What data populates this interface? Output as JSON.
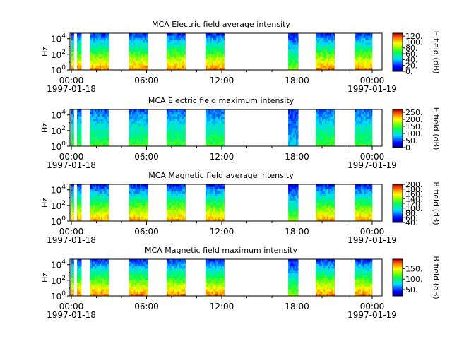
{
  "chart_data": [
    {
      "type": "heatmap",
      "title": "MCA  Electric field average intensity",
      "ylabel": "Hz",
      "y_ticks": [
        {
          "base": "10",
          "exp": "0"
        },
        {
          "base": "10",
          "exp": "2"
        },
        {
          "base": "10",
          "exp": "4"
        }
      ],
      "ylim_log10": [
        0,
        4.7
      ],
      "x_ticks": [
        "00:00",
        "06:00",
        "12:00",
        "18:00",
        "00:00"
      ],
      "x_dates": [
        "1997-01-18",
        "1997-01-19"
      ],
      "colorbar": {
        "label": "E field (dB)",
        "ticks": [
          "0.",
          "20.",
          "40.",
          "60.",
          "80.",
          "100.",
          "120."
        ],
        "range": [
          0,
          130
        ]
      },
      "base_level": 0.42,
      "data_intervals_hours": [
        [
          0.0,
          0.2
        ],
        [
          0.45,
          0.8
        ],
        [
          1.5,
          3.0
        ],
        [
          4.6,
          6.1
        ],
        [
          7.6,
          9.1
        ],
        [
          10.7,
          12.2
        ],
        [
          17.3,
          18.1
        ],
        [
          19.5,
          21.0
        ],
        [
          22.6,
          24.0
        ]
      ]
    },
    {
      "type": "heatmap",
      "title": "MCA  Electric field maximum intensity",
      "ylabel": "Hz",
      "y_ticks": [
        {
          "base": "10",
          "exp": "0"
        },
        {
          "base": "10",
          "exp": "2"
        },
        {
          "base": "10",
          "exp": "4"
        }
      ],
      "ylim_log10": [
        0,
        4.7
      ],
      "x_ticks": [
        "00:00",
        "06:00",
        "12:00",
        "18:00",
        "00:00"
      ],
      "x_dates": [
        "1997-01-18",
        "1997-01-19"
      ],
      "colorbar": {
        "label": "E field (dB)",
        "ticks": [
          "0.",
          "50.",
          "100.",
          "150.",
          "200.",
          "250."
        ],
        "range": [
          0,
          270
        ]
      },
      "base_level": 0.33,
      "data_intervals_hours": [
        [
          0.0,
          0.2
        ],
        [
          0.45,
          0.8
        ],
        [
          1.5,
          3.0
        ],
        [
          4.6,
          6.1
        ],
        [
          7.6,
          9.1
        ],
        [
          10.7,
          12.2
        ],
        [
          17.3,
          18.1
        ],
        [
          19.5,
          21.0
        ],
        [
          22.6,
          24.0
        ]
      ]
    },
    {
      "type": "heatmap",
      "title": "MCA  Magnetic field average intensity",
      "ylabel": "Hz",
      "y_ticks": [
        {
          "base": "10",
          "exp": "0"
        },
        {
          "base": "10",
          "exp": "2"
        },
        {
          "base": "10",
          "exp": "4"
        }
      ],
      "ylim_log10": [
        0,
        4.7
      ],
      "x_ticks": [
        "00:00",
        "06:00",
        "12:00",
        "18:00",
        "00:00"
      ],
      "x_dates": [
        "1997-01-18",
        "1997-01-19"
      ],
      "colorbar": {
        "label": "B field (dB)",
        "ticks": [
          "40.",
          "60.",
          "80.",
          "100.",
          "120.",
          "140.",
          "160.",
          "180.",
          "200."
        ],
        "range": [
          40,
          200
        ]
      },
      "base_level": 0.4,
      "data_intervals_hours": [
        [
          0.0,
          0.2
        ],
        [
          0.45,
          0.8
        ],
        [
          1.5,
          3.0
        ],
        [
          4.6,
          6.1
        ],
        [
          7.6,
          9.1
        ],
        [
          10.7,
          12.2
        ],
        [
          17.3,
          18.1
        ],
        [
          19.5,
          21.0
        ],
        [
          22.6,
          24.0
        ]
      ]
    },
    {
      "type": "heatmap",
      "title": "MCA  Magnetic field maximum intensity",
      "ylabel": "Hz",
      "y_ticks": [
        {
          "base": "10",
          "exp": "0"
        },
        {
          "base": "10",
          "exp": "2"
        },
        {
          "base": "10",
          "exp": "4"
        }
      ],
      "ylim_log10": [
        0,
        4.7
      ],
      "x_ticks": [
        "00:00",
        "06:00",
        "12:00",
        "18:00",
        "00:00"
      ],
      "x_dates": [
        "1997-01-18",
        "1997-01-19"
      ],
      "colorbar": {
        "label": "B field (dB)",
        "ticks": [
          "50.",
          "100.",
          "150."
        ],
        "range": [
          20,
          195
        ]
      },
      "base_level": 0.42,
      "data_intervals_hours": [
        [
          0.0,
          0.2
        ],
        [
          0.45,
          0.8
        ],
        [
          1.5,
          3.0
        ],
        [
          4.6,
          6.1
        ],
        [
          7.6,
          9.1
        ],
        [
          10.7,
          12.2
        ],
        [
          17.3,
          18.1
        ],
        [
          19.5,
          21.0
        ],
        [
          22.6,
          24.0
        ]
      ]
    }
  ]
}
